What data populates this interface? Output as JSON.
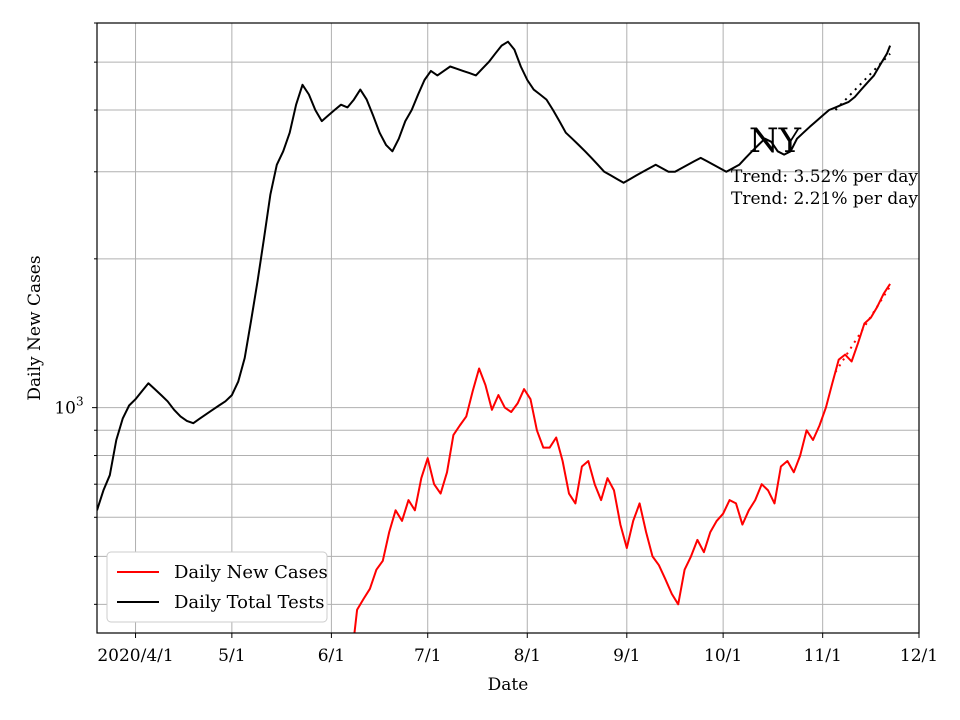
{
  "chart_data": {
    "type": "line",
    "xlabel": "Date",
    "ylabel": "Daily New Cases",
    "yscale": "log",
    "ylim": [
      350,
      6000
    ],
    "xlim": [
      "2020-03-20",
      "2020-12-01"
    ],
    "grid": true,
    "legend_position": "lower-left",
    "x_ticks": [
      {
        "date": "2020-04-01",
        "label": "2020/4/1"
      },
      {
        "date": "2020-05-01",
        "label": "5/1"
      },
      {
        "date": "2020-06-01",
        "label": "6/1"
      },
      {
        "date": "2020-07-01",
        "label": "7/1"
      },
      {
        "date": "2020-08-01",
        "label": "8/1"
      },
      {
        "date": "2020-09-01",
        "label": "9/1"
      },
      {
        "date": "2020-10-01",
        "label": "10/1"
      },
      {
        "date": "2020-11-01",
        "label": "11/1"
      },
      {
        "date": "2020-12-01",
        "label": "12/1"
      }
    ],
    "y_tick_label": "10^3",
    "annotation": {
      "title": "NY",
      "trend_1": "Trend: 3.52% per day",
      "trend_2": "Trend: 2.21% per day"
    },
    "series": [
      {
        "name": "Daily New Cases",
        "color": "#ff0000",
        "trend_color": "#ff0000",
        "points": [
          [
            "2020-06-07",
            300
          ],
          [
            "2020-06-09",
            390
          ],
          [
            "2020-06-11",
            410
          ],
          [
            "2020-06-13",
            430
          ],
          [
            "2020-06-15",
            470
          ],
          [
            "2020-06-17",
            490
          ],
          [
            "2020-06-19",
            560
          ],
          [
            "2020-06-21",
            620
          ],
          [
            "2020-06-23",
            590
          ],
          [
            "2020-06-25",
            650
          ],
          [
            "2020-06-27",
            620
          ],
          [
            "2020-06-29",
            720
          ],
          [
            "2020-07-01",
            790
          ],
          [
            "2020-07-03",
            700
          ],
          [
            "2020-07-05",
            670
          ],
          [
            "2020-07-07",
            740
          ],
          [
            "2020-07-09",
            880
          ],
          [
            "2020-07-11",
            920
          ],
          [
            "2020-07-13",
            960
          ],
          [
            "2020-07-15",
            1080
          ],
          [
            "2020-07-17",
            1200
          ],
          [
            "2020-07-19",
            1110
          ],
          [
            "2020-07-21",
            990
          ],
          [
            "2020-07-23",
            1060
          ],
          [
            "2020-07-25",
            1000
          ],
          [
            "2020-07-27",
            980
          ],
          [
            "2020-07-29",
            1020
          ],
          [
            "2020-07-31",
            1090
          ],
          [
            "2020-08-02",
            1040
          ],
          [
            "2020-08-04",
            900
          ],
          [
            "2020-08-06",
            830
          ],
          [
            "2020-08-08",
            830
          ],
          [
            "2020-08-10",
            870
          ],
          [
            "2020-08-12",
            780
          ],
          [
            "2020-08-14",
            670
          ],
          [
            "2020-08-16",
            640
          ],
          [
            "2020-08-18",
            760
          ],
          [
            "2020-08-20",
            780
          ],
          [
            "2020-08-22",
            700
          ],
          [
            "2020-08-24",
            650
          ],
          [
            "2020-08-26",
            720
          ],
          [
            "2020-08-28",
            680
          ],
          [
            "2020-08-30",
            580
          ],
          [
            "2020-09-01",
            520
          ],
          [
            "2020-09-03",
            590
          ],
          [
            "2020-09-05",
            640
          ],
          [
            "2020-09-07",
            560
          ],
          [
            "2020-09-09",
            500
          ],
          [
            "2020-09-11",
            480
          ],
          [
            "2020-09-13",
            450
          ],
          [
            "2020-09-15",
            420
          ],
          [
            "2020-09-17",
            400
          ],
          [
            "2020-09-19",
            470
          ],
          [
            "2020-09-21",
            500
          ],
          [
            "2020-09-23",
            540
          ],
          [
            "2020-09-25",
            510
          ],
          [
            "2020-09-27",
            560
          ],
          [
            "2020-09-29",
            590
          ],
          [
            "2020-10-01",
            610
          ],
          [
            "2020-10-03",
            650
          ],
          [
            "2020-10-05",
            640
          ],
          [
            "2020-10-07",
            580
          ],
          [
            "2020-10-09",
            620
          ],
          [
            "2020-10-11",
            650
          ],
          [
            "2020-10-13",
            700
          ],
          [
            "2020-10-15",
            680
          ],
          [
            "2020-10-17",
            640
          ],
          [
            "2020-10-19",
            760
          ],
          [
            "2020-10-21",
            780
          ],
          [
            "2020-10-23",
            740
          ],
          [
            "2020-10-25",
            800
          ],
          [
            "2020-10-27",
            900
          ],
          [
            "2020-10-29",
            860
          ],
          [
            "2020-10-31",
            920
          ],
          [
            "2020-11-02",
            1000
          ],
          [
            "2020-11-04",
            1120
          ],
          [
            "2020-11-06",
            1250
          ],
          [
            "2020-11-08",
            1280
          ],
          [
            "2020-11-10",
            1240
          ],
          [
            "2020-11-12",
            1350
          ],
          [
            "2020-11-14",
            1480
          ],
          [
            "2020-11-16",
            1520
          ],
          [
            "2020-11-18",
            1600
          ],
          [
            "2020-11-20",
            1700
          ],
          [
            "2020-11-22",
            1780
          ]
        ],
        "trend_points": [
          [
            "2020-11-05",
            1180
          ],
          [
            "2020-11-22",
            1760
          ]
        ]
      },
      {
        "name": "Daily Total Tests",
        "color": "#000000",
        "trend_color": "#000000",
        "points": [
          [
            "2020-03-20",
            620
          ],
          [
            "2020-03-22",
            680
          ],
          [
            "2020-03-24",
            730
          ],
          [
            "2020-03-26",
            860
          ],
          [
            "2020-03-28",
            950
          ],
          [
            "2020-03-30",
            1010
          ],
          [
            "2020-04-01",
            1040
          ],
          [
            "2020-04-03",
            1080
          ],
          [
            "2020-04-05",
            1120
          ],
          [
            "2020-04-07",
            1090
          ],
          [
            "2020-04-09",
            1060
          ],
          [
            "2020-04-11",
            1030
          ],
          [
            "2020-04-13",
            990
          ],
          [
            "2020-04-15",
            960
          ],
          [
            "2020-04-17",
            940
          ],
          [
            "2020-04-19",
            930
          ],
          [
            "2020-04-21",
            950
          ],
          [
            "2020-04-23",
            970
          ],
          [
            "2020-04-25",
            990
          ],
          [
            "2020-04-27",
            1010
          ],
          [
            "2020-04-29",
            1030
          ],
          [
            "2020-05-01",
            1060
          ],
          [
            "2020-05-03",
            1130
          ],
          [
            "2020-05-05",
            1260
          ],
          [
            "2020-05-07",
            1500
          ],
          [
            "2020-05-09",
            1800
          ],
          [
            "2020-05-11",
            2200
          ],
          [
            "2020-05-13",
            2700
          ],
          [
            "2020-05-15",
            3100
          ],
          [
            "2020-05-17",
            3300
          ],
          [
            "2020-05-19",
            3600
          ],
          [
            "2020-05-21",
            4100
          ],
          [
            "2020-05-23",
            4500
          ],
          [
            "2020-05-25",
            4300
          ],
          [
            "2020-05-27",
            4000
          ],
          [
            "2020-05-29",
            3800
          ],
          [
            "2020-05-31",
            3900
          ],
          [
            "2020-06-02",
            4000
          ],
          [
            "2020-06-04",
            4100
          ],
          [
            "2020-06-06",
            4050
          ],
          [
            "2020-06-08",
            4200
          ],
          [
            "2020-06-10",
            4400
          ],
          [
            "2020-06-12",
            4200
          ],
          [
            "2020-06-14",
            3900
          ],
          [
            "2020-06-16",
            3600
          ],
          [
            "2020-06-18",
            3400
          ],
          [
            "2020-06-20",
            3300
          ],
          [
            "2020-06-22",
            3500
          ],
          [
            "2020-06-24",
            3800
          ],
          [
            "2020-06-26",
            4000
          ],
          [
            "2020-06-28",
            4300
          ],
          [
            "2020-06-30",
            4600
          ],
          [
            "2020-07-02",
            4800
          ],
          [
            "2020-07-04",
            4700
          ],
          [
            "2020-07-06",
            4800
          ],
          [
            "2020-07-08",
            4900
          ],
          [
            "2020-07-10",
            4850
          ],
          [
            "2020-07-12",
            4800
          ],
          [
            "2020-07-14",
            4750
          ],
          [
            "2020-07-16",
            4700
          ],
          [
            "2020-07-18",
            4850
          ],
          [
            "2020-07-20",
            5000
          ],
          [
            "2020-07-22",
            5200
          ],
          [
            "2020-07-24",
            5400
          ],
          [
            "2020-07-26",
            5500
          ],
          [
            "2020-07-28",
            5300
          ],
          [
            "2020-07-30",
            4900
          ],
          [
            "2020-08-01",
            4600
          ],
          [
            "2020-08-03",
            4400
          ],
          [
            "2020-08-05",
            4300
          ],
          [
            "2020-08-07",
            4200
          ],
          [
            "2020-08-09",
            4000
          ],
          [
            "2020-08-11",
            3800
          ],
          [
            "2020-08-13",
            3600
          ],
          [
            "2020-08-15",
            3500
          ],
          [
            "2020-08-17",
            3400
          ],
          [
            "2020-08-19",
            3300
          ],
          [
            "2020-08-21",
            3200
          ],
          [
            "2020-08-23",
            3100
          ],
          [
            "2020-08-25",
            3000
          ],
          [
            "2020-08-27",
            2950
          ],
          [
            "2020-08-29",
            2900
          ],
          [
            "2020-08-31",
            2850
          ],
          [
            "2020-09-02",
            2900
          ],
          [
            "2020-09-04",
            2950
          ],
          [
            "2020-09-06",
            3000
          ],
          [
            "2020-09-08",
            3050
          ],
          [
            "2020-09-10",
            3100
          ],
          [
            "2020-09-12",
            3050
          ],
          [
            "2020-09-14",
            3000
          ],
          [
            "2020-09-16",
            3000
          ],
          [
            "2020-09-18",
            3050
          ],
          [
            "2020-09-20",
            3100
          ],
          [
            "2020-09-22",
            3150
          ],
          [
            "2020-09-24",
            3200
          ],
          [
            "2020-09-26",
            3150
          ],
          [
            "2020-09-28",
            3100
          ],
          [
            "2020-09-30",
            3050
          ],
          [
            "2020-10-02",
            3000
          ],
          [
            "2020-10-04",
            3050
          ],
          [
            "2020-10-06",
            3100
          ],
          [
            "2020-10-08",
            3200
          ],
          [
            "2020-10-10",
            3300
          ],
          [
            "2020-10-12",
            3400
          ],
          [
            "2020-10-14",
            3500
          ],
          [
            "2020-10-16",
            3450
          ],
          [
            "2020-10-18",
            3300
          ],
          [
            "2020-10-20",
            3250
          ],
          [
            "2020-10-22",
            3300
          ],
          [
            "2020-10-24",
            3500
          ],
          [
            "2020-10-26",
            3600
          ],
          [
            "2020-10-28",
            3700
          ],
          [
            "2020-10-30",
            3800
          ],
          [
            "2020-11-01",
            3900
          ],
          [
            "2020-11-03",
            4000
          ],
          [
            "2020-11-05",
            4050
          ],
          [
            "2020-11-07",
            4100
          ],
          [
            "2020-11-09",
            4150
          ],
          [
            "2020-11-11",
            4250
          ],
          [
            "2020-11-13",
            4400
          ],
          [
            "2020-11-15",
            4550
          ],
          [
            "2020-11-17",
            4700
          ],
          [
            "2020-11-19",
            4950
          ],
          [
            "2020-11-21",
            5200
          ],
          [
            "2020-11-22",
            5400
          ]
        ],
        "trend_points": [
          [
            "2020-11-05",
            4000
          ],
          [
            "2020-11-22",
            5200
          ]
        ]
      }
    ],
    "legend": [
      "Daily New Cases",
      "Daily Total Tests"
    ]
  }
}
